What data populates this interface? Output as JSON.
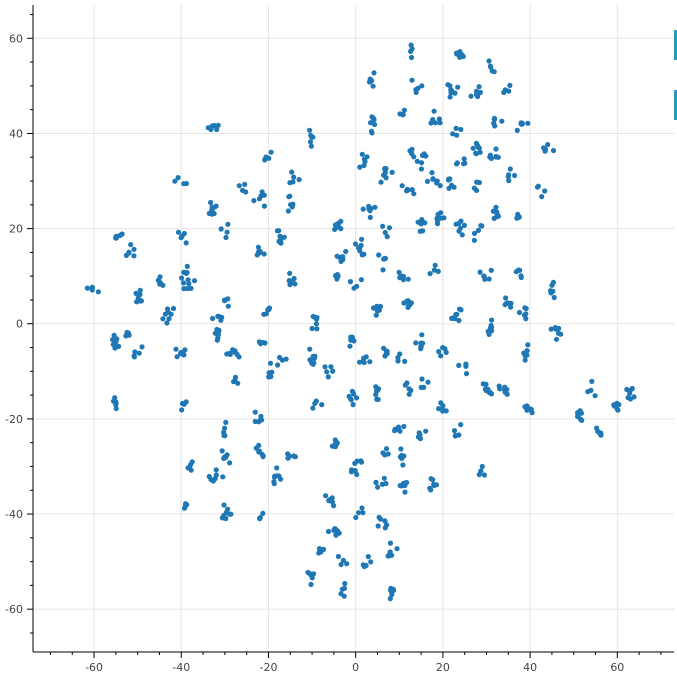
{
  "chart_data": {
    "type": "scatter",
    "title": "",
    "xlabel": "",
    "ylabel": "",
    "xlim": [
      -74,
      73
    ],
    "ylim": [
      -69,
      67
    ],
    "x_ticks": [
      -60,
      -40,
      -20,
      0,
      20,
      40,
      60
    ],
    "y_ticks": [
      -60,
      -40,
      -20,
      0,
      20,
      40,
      60
    ],
    "grid": true,
    "marker_color": "#1f77b4",
    "side_marks_color": "#1f9bc4",
    "clusters": [
      {
        "x": -60,
        "y": 8
      },
      {
        "x": -55,
        "y": 18
      },
      {
        "x": -52,
        "y": 15
      },
      {
        "x": -50,
        "y": 6
      },
      {
        "x": -55,
        "y": -4
      },
      {
        "x": -52,
        "y": -2
      },
      {
        "x": -50,
        "y": -6
      },
      {
        "x": -55,
        "y": -17
      },
      {
        "x": -45,
        "y": 9
      },
      {
        "x": -43,
        "y": 2
      },
      {
        "x": -40,
        "y": 30
      },
      {
        "x": -40,
        "y": 18
      },
      {
        "x": -39,
        "y": 11
      },
      {
        "x": -38,
        "y": 8
      },
      {
        "x": -40,
        "y": -6
      },
      {
        "x": -40,
        "y": -17
      },
      {
        "x": -38,
        "y": -30
      },
      {
        "x": -39,
        "y": -38
      },
      {
        "x": -33,
        "y": 41
      },
      {
        "x": -33,
        "y": 24
      },
      {
        "x": -30,
        "y": 20
      },
      {
        "x": -32,
        "y": 2
      },
      {
        "x": -30,
        "y": 5
      },
      {
        "x": -32,
        "y": -2
      },
      {
        "x": -28,
        "y": -6
      },
      {
        "x": -28,
        "y": -12
      },
      {
        "x": -30,
        "y": -22
      },
      {
        "x": -30,
        "y": -28
      },
      {
        "x": -32,
        "y": -32
      },
      {
        "x": -30,
        "y": -40
      },
      {
        "x": -26,
        "y": 28
      },
      {
        "x": -20,
        "y": 35
      },
      {
        "x": -22,
        "y": 26
      },
      {
        "x": -22,
        "y": 15
      },
      {
        "x": -20,
        "y": 3
      },
      {
        "x": -22,
        "y": -4
      },
      {
        "x": -20,
        "y": -10
      },
      {
        "x": -22,
        "y": -20
      },
      {
        "x": -22,
        "y": -27
      },
      {
        "x": -18,
        "y": -32
      },
      {
        "x": -22,
        "y": -41
      },
      {
        "x": -14,
        "y": 31
      },
      {
        "x": -15,
        "y": 25
      },
      {
        "x": -17,
        "y": 18
      },
      {
        "x": -15,
        "y": 9
      },
      {
        "x": -17,
        "y": -8
      },
      {
        "x": -15,
        "y": -28
      },
      {
        "x": -10,
        "y": 39
      },
      {
        "x": -9,
        "y": 0
      },
      {
        "x": -10,
        "y": -7
      },
      {
        "x": -9,
        "y": -17
      },
      {
        "x": -8,
        "y": -48
      },
      {
        "x": -10,
        "y": -53
      },
      {
        "x": -4,
        "y": 21
      },
      {
        "x": -3,
        "y": 14
      },
      {
        "x": -4,
        "y": 10
      },
      {
        "x": -6,
        "y": -10
      },
      {
        "x": -4,
        "y": -25
      },
      {
        "x": -6,
        "y": -37
      },
      {
        "x": -5,
        "y": -43
      },
      {
        "x": -3,
        "y": -50
      },
      {
        "x": -3,
        "y": -56
      },
      {
        "x": 2,
        "y": 34
      },
      {
        "x": 3,
        "y": 24
      },
      {
        "x": 1,
        "y": 16
      },
      {
        "x": 0,
        "y": 9
      },
      {
        "x": -1,
        "y": -3
      },
      {
        "x": 2,
        "y": -8
      },
      {
        "x": -1,
        "y": -16
      },
      {
        "x": 0,
        "y": -30
      },
      {
        "x": 1,
        "y": -40
      },
      {
        "x": 2,
        "y": -50
      },
      {
        "x": 4,
        "y": 51
      },
      {
        "x": 4,
        "y": 42
      },
      {
        "x": 7,
        "y": 31
      },
      {
        "x": 7,
        "y": 20
      },
      {
        "x": 6,
        "y": 13
      },
      {
        "x": 5,
        "y": 3
      },
      {
        "x": 7,
        "y": -6
      },
      {
        "x": 5,
        "y": -14
      },
      {
        "x": 7,
        "y": -26
      },
      {
        "x": 6,
        "y": -33
      },
      {
        "x": 6,
        "y": -42
      },
      {
        "x": 8,
        "y": -48
      },
      {
        "x": 8,
        "y": -56
      },
      {
        "x": 11,
        "y": 44
      },
      {
        "x": 12,
        "y": 36
      },
      {
        "x": 12,
        "y": 28
      },
      {
        "x": 11,
        "y": 10
      },
      {
        "x": 12,
        "y": 4
      },
      {
        "x": 10,
        "y": -8
      },
      {
        "x": 12,
        "y": -14
      },
      {
        "x": 10,
        "y": -22
      },
      {
        "x": 11,
        "y": -28
      },
      {
        "x": 11,
        "y": -34
      },
      {
        "x": 13,
        "y": 57
      },
      {
        "x": 14,
        "y": 50
      },
      {
        "x": 15,
        "y": 34
      },
      {
        "x": 15,
        "y": 21
      },
      {
        "x": 15,
        "y": -4
      },
      {
        "x": 15,
        "y": -12
      },
      {
        "x": 15,
        "y": -23
      },
      {
        "x": 18,
        "y": 43
      },
      {
        "x": 18,
        "y": 30
      },
      {
        "x": 19,
        "y": 22
      },
      {
        "x": 18,
        "y": 12
      },
      {
        "x": 20,
        "y": -5
      },
      {
        "x": 20,
        "y": -18
      },
      {
        "x": 18,
        "y": -34
      },
      {
        "x": 22,
        "y": 49
      },
      {
        "x": 23,
        "y": 41
      },
      {
        "x": 24,
        "y": 35
      },
      {
        "x": 22,
        "y": 29
      },
      {
        "x": 24,
        "y": 20
      },
      {
        "x": 23,
        "y": 2
      },
      {
        "x": 25,
        "y": -9
      },
      {
        "x": 24,
        "y": -23
      },
      {
        "x": 24,
        "y": 56
      },
      {
        "x": 28,
        "y": 48
      },
      {
        "x": 28,
        "y": 37
      },
      {
        "x": 28,
        "y": 29
      },
      {
        "x": 28,
        "y": 19
      },
      {
        "x": 30,
        "y": 11
      },
      {
        "x": 31,
        "y": -1
      },
      {
        "x": 30,
        "y": -14
      },
      {
        "x": 29,
        "y": -30
      },
      {
        "x": 31,
        "y": 54
      },
      {
        "x": 32,
        "y": 43
      },
      {
        "x": 32,
        "y": 35
      },
      {
        "x": 32,
        "y": 24
      },
      {
        "x": 35,
        "y": 49
      },
      {
        "x": 35,
        "y": 31
      },
      {
        "x": 35,
        "y": 5
      },
      {
        "x": 34,
        "y": -14
      },
      {
        "x": 38,
        "y": 42
      },
      {
        "x": 37,
        "y": 22
      },
      {
        "x": 38,
        "y": 11
      },
      {
        "x": 39,
        "y": 2
      },
      {
        "x": 39,
        "y": -6
      },
      {
        "x": 40,
        "y": -18
      },
      {
        "x": 42,
        "y": 28
      },
      {
        "x": 44,
        "y": 37
      },
      {
        "x": 45,
        "y": 7
      },
      {
        "x": 46,
        "y": -2
      },
      {
        "x": 51,
        "y": -19
      },
      {
        "x": 54,
        "y": -14
      },
      {
        "x": 56,
        "y": -23
      },
      {
        "x": 60,
        "y": -18
      },
      {
        "x": 63,
        "y": -14
      }
    ]
  }
}
